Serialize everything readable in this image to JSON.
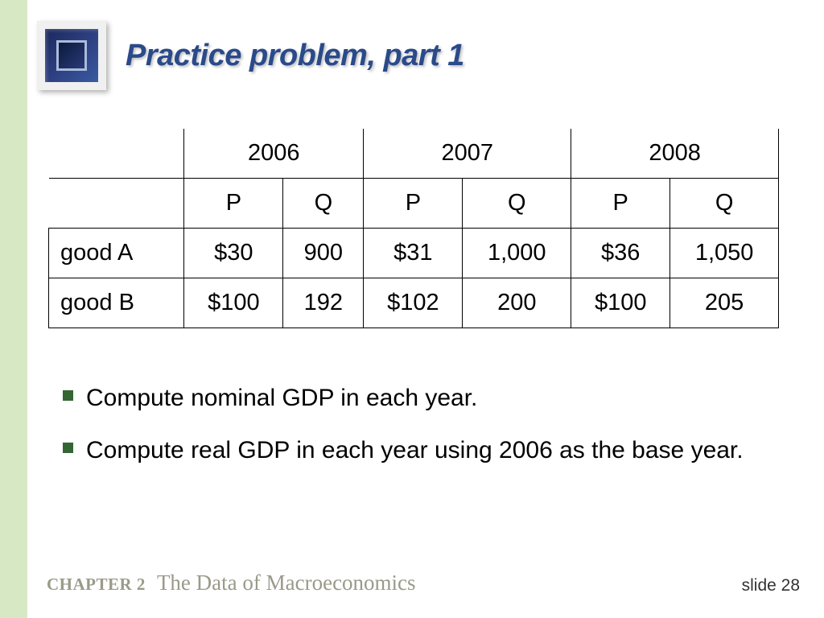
{
  "title": "Practice problem, part 1",
  "title_color": "#2a4a8a",
  "stripe_color": "#d6e8c4",
  "table": {
    "year_headers": [
      "2006",
      "2007",
      "2008"
    ],
    "sub_headers": [
      "P",
      "Q",
      "P",
      "Q",
      "P",
      "Q"
    ],
    "rows": [
      {
        "label": "good A",
        "cells": [
          "$30",
          "900",
          "$31",
          "1,000",
          "$36",
          "1,050"
        ]
      },
      {
        "label": "good B",
        "cells": [
          "$100",
          "192",
          "$102",
          "200",
          "$100",
          "205"
        ]
      }
    ],
    "font_size": 29,
    "border_color": "#000000"
  },
  "bullets": [
    "Compute nominal GDP in each year.",
    "Compute real GDP in each year using 2006 as the base year."
  ],
  "bullet_marker_color": "#336633",
  "footer": {
    "chapter_label": "CHAPTER 2",
    "chapter_title": "The Data of Macroeconomics",
    "slide": "slide 28"
  }
}
